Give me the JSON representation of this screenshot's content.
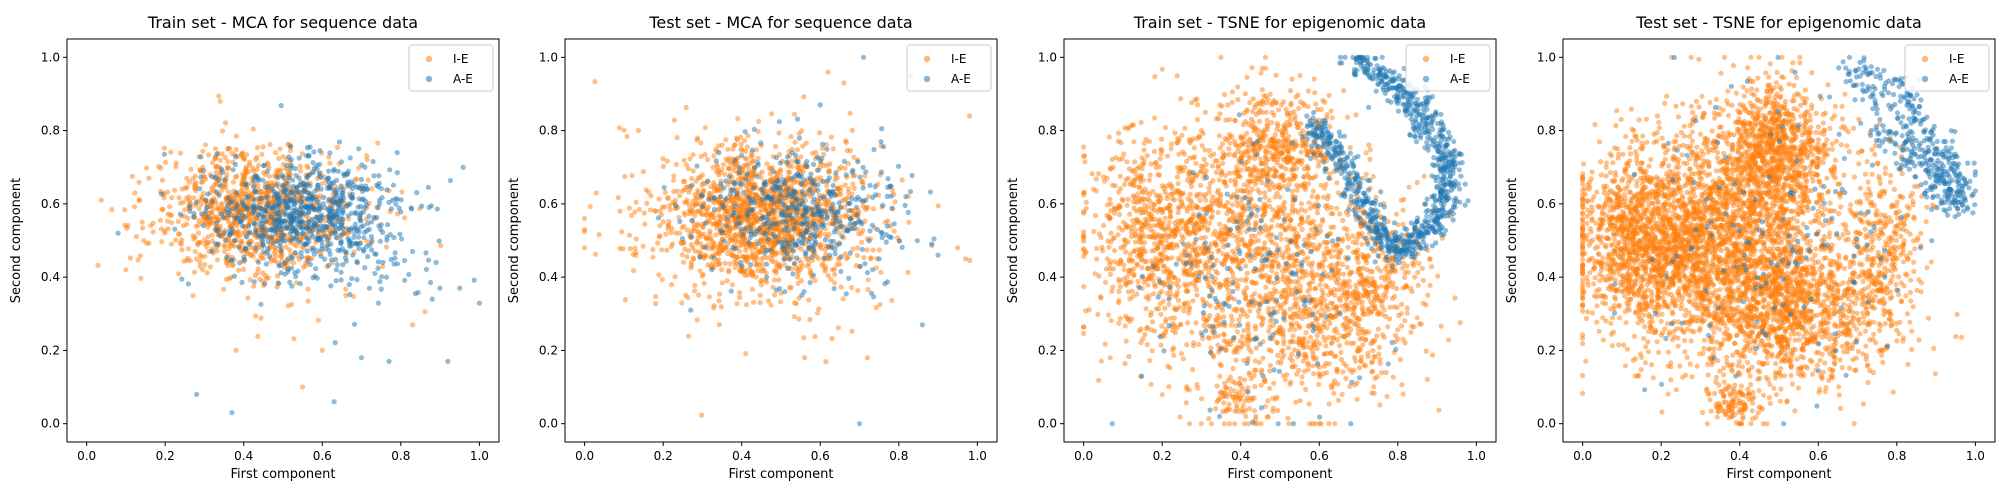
{
  "colors": {
    "ie": "#ff7f0e",
    "ae": "#1f77b4"
  },
  "chart_data": [
    {
      "type": "scatter",
      "title": "Train set - MCA for sequence data",
      "xlabel": "First component",
      "ylabel": "Second component",
      "xlim": [
        -0.05,
        1.05
      ],
      "ylim": [
        -0.05,
        1.05
      ],
      "xticks": [
        "0.0",
        "0.2",
        "0.4",
        "0.6",
        "0.8",
        "1.0"
      ],
      "yticks": [
        "0.0",
        "0.2",
        "0.4",
        "0.6",
        "0.8",
        "1.0"
      ],
      "legend": [
        "I-E",
        "A-E"
      ],
      "series": [
        {
          "name": "I-E",
          "clusters": [
            {
              "cx": 0.42,
              "cy": 0.58,
              "sx": 0.12,
              "sy": 0.08,
              "n": 900
            },
            {
              "cx": 0.5,
              "cy": 0.55,
              "sx": 0.17,
              "sy": 0.12,
              "n": 140
            }
          ],
          "extra": [
            [
              0.38,
              0.2
            ],
            [
              0.55,
              0.1
            ],
            [
              0.6,
              0.2
            ],
            [
              0.83,
              0.27
            ],
            [
              0.66,
              0.35
            ],
            [
              0.1,
              0.42
            ],
            [
              0.34,
              0.88
            ]
          ]
        },
        {
          "name": "A-E",
          "clusters": [
            {
              "cx": 0.55,
              "cy": 0.57,
              "sx": 0.12,
              "sy": 0.08,
              "n": 700
            },
            {
              "cx": 0.65,
              "cy": 0.5,
              "sx": 0.15,
              "sy": 0.1,
              "n": 90
            }
          ],
          "extra": [
            [
              0.28,
              0.08
            ],
            [
              0.37,
              0.03
            ],
            [
              0.63,
              0.06
            ],
            [
              0.7,
              0.18
            ],
            [
              0.77,
              0.17
            ],
            [
              0.92,
              0.17
            ],
            [
              0.95,
              0.37
            ],
            [
              0.89,
              0.44
            ],
            [
              0.88,
              0.34
            ],
            [
              0.83,
              0.47
            ],
            [
              0.08,
              0.52
            ]
          ]
        }
      ]
    },
    {
      "type": "scatter",
      "title": "Test set - MCA for sequence data",
      "xlabel": "First component",
      "ylabel": "Second component",
      "xlim": [
        -0.05,
        1.05
      ],
      "ylim": [
        -0.05,
        1.05
      ],
      "xticks": [
        "0.0",
        "0.2",
        "0.4",
        "0.6",
        "0.8",
        "1.0"
      ],
      "yticks": [
        "0.0",
        "0.2",
        "0.4",
        "0.6",
        "0.8",
        "1.0"
      ],
      "legend": [
        "I-E",
        "A-E"
      ],
      "series": [
        {
          "name": "I-E",
          "clusters": [
            {
              "cx": 0.45,
              "cy": 0.57,
              "sx": 0.13,
              "sy": 0.09,
              "n": 1400
            },
            {
              "cx": 0.45,
              "cy": 0.52,
              "sx": 0.2,
              "sy": 0.14,
              "n": 200
            }
          ],
          "extra": [
            [
              0.0,
              0.53
            ],
            [
              0.03,
              0.63
            ],
            [
              0.97,
              0.45
            ],
            [
              0.95,
              0.48
            ],
            [
              0.72,
              0.18
            ],
            [
              0.56,
              0.18
            ],
            [
              0.66,
              0.93
            ],
            [
              0.62,
              0.96
            ]
          ]
        },
        {
          "name": "A-E",
          "clusters": [
            {
              "cx": 0.55,
              "cy": 0.57,
              "sx": 0.13,
              "sy": 0.09,
              "n": 450
            }
          ],
          "extra": [
            [
              0.71,
              1.0
            ],
            [
              0.7,
              0.0
            ],
            [
              0.86,
              0.27
            ],
            [
              0.9,
              0.46
            ],
            [
              0.83,
              0.95
            ],
            [
              0.27,
              0.31
            ],
            [
              0.75,
              0.45
            ],
            [
              0.6,
              0.87
            ]
          ]
        }
      ]
    },
    {
      "type": "scatter",
      "title": "Train set - TSNE for epigenomic data",
      "xlabel": "First component",
      "ylabel": "Second component",
      "xlim": [
        -0.05,
        1.05
      ],
      "ylim": [
        -0.05,
        1.05
      ],
      "xticks": [
        "0.0",
        "0.2",
        "0.4",
        "0.6",
        "0.8",
        "1.0"
      ],
      "yticks": [
        "0.0",
        "0.2",
        "0.4",
        "0.6",
        "0.8",
        "1.0"
      ],
      "legend": [
        "I-E",
        "A-E"
      ],
      "series": [
        {
          "name": "I-E",
          "clusters": [
            {
              "cx": 0.2,
              "cy": 0.5,
              "sx": 0.1,
              "sy": 0.15,
              "n": 800
            },
            {
              "cx": 0.45,
              "cy": 0.45,
              "sx": 0.12,
              "sy": 0.2,
              "n": 1000
            },
            {
              "cx": 0.5,
              "cy": 0.75,
              "sx": 0.08,
              "sy": 0.08,
              "n": 400
            },
            {
              "cx": 0.65,
              "cy": 0.3,
              "sx": 0.1,
              "sy": 0.12,
              "n": 500
            },
            {
              "cx": 0.38,
              "cy": 0.07,
              "sx": 0.03,
              "sy": 0.04,
              "n": 60
            },
            {
              "cx": 0.74,
              "cy": 0.45,
              "sx": 0.07,
              "sy": 0.1,
              "n": 200
            }
          ],
          "extra": [
            [
              0.29,
              0.87
            ],
            [
              0.29,
              0.83
            ],
            [
              0.3,
              0.8
            ],
            [
              0.31,
              0.85
            ]
          ]
        },
        {
          "name": "A-E",
          "arc": [
            [
              0.68,
              1.0
            ],
            [
              0.75,
              0.95
            ],
            [
              0.82,
              0.9
            ],
            [
              0.87,
              0.83
            ],
            [
              0.91,
              0.76
            ],
            [
              0.93,
              0.68
            ],
            [
              0.92,
              0.6
            ],
            [
              0.89,
              0.55
            ],
            [
              0.84,
              0.5
            ],
            [
              0.8,
              0.47
            ],
            [
              0.75,
              0.52
            ],
            [
              0.72,
              0.6
            ],
            [
              0.68,
              0.68
            ],
            [
              0.63,
              0.75
            ],
            [
              0.58,
              0.82
            ]
          ],
          "arcCount": 900,
          "arcSpread": 0.02,
          "clusters": [
            {
              "cx": 0.45,
              "cy": 0.4,
              "sx": 0.15,
              "sy": 0.2,
              "n": 160
            }
          ]
        }
      ]
    },
    {
      "type": "scatter",
      "title": "Test set - TSNE for epigenomic data",
      "xlabel": "First component",
      "ylabel": "Second component",
      "xlim": [
        -0.05,
        1.05
      ],
      "ylim": [
        -0.05,
        1.05
      ],
      "xticks": [
        "0.0",
        "0.2",
        "0.4",
        "0.6",
        "0.8",
        "1.0"
      ],
      "yticks": [
        "0.0",
        "0.2",
        "0.4",
        "0.6",
        "0.8",
        "1.0"
      ],
      "legend": [
        "I-E",
        "A-E"
      ],
      "series": [
        {
          "name": "I-E",
          "clusters": [
            {
              "cx": 0.18,
              "cy": 0.5,
              "sx": 0.1,
              "sy": 0.13,
              "n": 1600
            },
            {
              "cx": 0.42,
              "cy": 0.5,
              "sx": 0.12,
              "sy": 0.18,
              "n": 1800
            },
            {
              "cx": 0.5,
              "cy": 0.75,
              "sx": 0.07,
              "sy": 0.08,
              "n": 700
            },
            {
              "cx": 0.55,
              "cy": 0.3,
              "sx": 0.12,
              "sy": 0.1,
              "n": 900
            },
            {
              "cx": 0.39,
              "cy": 0.06,
              "sx": 0.03,
              "sy": 0.03,
              "n": 90
            },
            {
              "cx": 0.77,
              "cy": 0.5,
              "sx": 0.05,
              "sy": 0.12,
              "n": 300
            }
          ],
          "extra": [
            [
              0.28,
              0.85
            ],
            [
              0.28,
              0.82
            ],
            [
              0.29,
              0.88
            ],
            [
              0.3,
              0.79
            ]
          ]
        },
        {
          "name": "A-E",
          "arc": [
            [
              0.69,
              0.99
            ],
            [
              0.75,
              0.93
            ],
            [
              0.81,
              0.88
            ],
            [
              0.86,
              0.82
            ],
            [
              0.9,
              0.76
            ],
            [
              0.93,
              0.7
            ],
            [
              0.96,
              0.65
            ],
            [
              0.95,
              0.6
            ],
            [
              0.92,
              0.65
            ],
            [
              0.87,
              0.7
            ],
            [
              0.82,
              0.75
            ],
            [
              0.76,
              0.8
            ]
          ],
          "arcCount": 400,
          "arcSpread": 0.025,
          "clusters": [
            {
              "cx": 0.5,
              "cy": 0.45,
              "sx": 0.18,
              "sy": 0.2,
              "n": 150
            }
          ]
        }
      ]
    }
  ]
}
